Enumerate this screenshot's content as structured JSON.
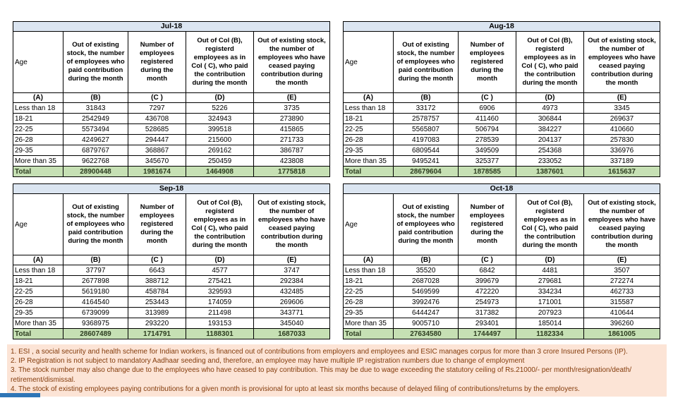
{
  "columns": {
    "age_label": "Age",
    "b": "Out of existing stock, the number of employees who paid contribution during the month",
    "c": "Number of employees registered during the month",
    "d": "Out of Col (B), registerd employees as in Col ( C), who paid the contribution during the month",
    "e": "Out of existing stock, the number of  employees who have ceased paying contribution during the month",
    "letters": [
      "(A)",
      "(B)",
      "(C )",
      "(D)",
      "(E)"
    ]
  },
  "months": [
    {
      "title": "Jul-18",
      "rows": [
        [
          "Less than 18",
          "31843",
          "7297",
          "5226",
          "3735"
        ],
        [
          "18-21",
          "2542949",
          "436708",
          "324943",
          "273890"
        ],
        [
          "22-25",
          "5573494",
          "528685",
          "399518",
          "415865"
        ],
        [
          "26-28",
          "4249627",
          "294447",
          "215600",
          "271733"
        ],
        [
          "29-35",
          "6879767",
          "368867",
          "269162",
          "386787"
        ],
        [
          "More than 35",
          "9622768",
          "345670",
          "250459",
          "423808"
        ]
      ],
      "total": [
        "Total",
        "28900448",
        "1981674",
        "1464908",
        "1775818"
      ]
    },
    {
      "title": "Aug-18",
      "rows": [
        [
          "Less than 18",
          "33172",
          "6906",
          "4973",
          "3345"
        ],
        [
          "18-21",
          "2578757",
          "411460",
          "306844",
          "269637"
        ],
        [
          "22-25",
          "5565807",
          "506794",
          "384227",
          "410660"
        ],
        [
          "26-28",
          "4197083",
          "278539",
          "204137",
          "257830"
        ],
        [
          "29-35",
          "6809544",
          "349509",
          "254368",
          "336976"
        ],
        [
          "More than 35",
          "9495241",
          "325377",
          "233052",
          "337189"
        ]
      ],
      "total": [
        "Total",
        "28679604",
        "1878585",
        "1387601",
        "1615637"
      ]
    },
    {
      "title": "Sep-18",
      "rows": [
        [
          "Less than 18",
          "37797",
          "6643",
          "4577",
          "3747"
        ],
        [
          "18-21",
          "2677898",
          "388712",
          "275421",
          "292384"
        ],
        [
          "22-25",
          "5619180",
          "458784",
          "329593",
          "432485"
        ],
        [
          "26-28",
          "4164540",
          "253443",
          "174059",
          "269606"
        ],
        [
          "29-35",
          "6739099",
          "313989",
          "211498",
          "343771"
        ],
        [
          "More than 35",
          "9368975",
          "293220",
          "193153",
          "345040"
        ]
      ],
      "total": [
        "Total",
        "28607489",
        "1714791",
        "1188301",
        "1687033"
      ]
    },
    {
      "title": "Oct-18",
      "rows": [
        [
          "Less than 18",
          "35520",
          "6842",
          "4481",
          "3507"
        ],
        [
          "18-21",
          "2687028",
          "399679",
          "279681",
          "272274"
        ],
        [
          "22-25",
          "5469599",
          "472220",
          "334234",
          "462733"
        ],
        [
          "26-28",
          "3992476",
          "254973",
          "171001",
          "315587"
        ],
        [
          "29-35",
          "6444247",
          "317382",
          "207923",
          "410644"
        ],
        [
          "More than 35",
          "9005710",
          "293401",
          "185014",
          "396260"
        ]
      ],
      "total": [
        "Total",
        "27634580",
        "1744497",
        "1182334",
        "1861005"
      ]
    }
  ],
  "footnotes": [
    "1. ESI , a social security and health scheme for Indian workers, is financed out of contributions from employers and employees and ESIC manages corpus for more than 3 crore Insured Persons (IP).",
    "2. IP Registration is not subject to mandatory Aadhaar seeding and, therefore, an employee may have multiple IP registration numbers due to change of employment",
    "3. The stock number may also change due to the employees who have ceased to pay contribution. This may  be due to wage exceeding the statutory ceiling of  Rs.21000/- per month/resignation/death/ retirement/dismissal.",
    "4. The stock of existing employees paying contributions for a given month is provisional for upto at least six months because of delayed filing of contributions/returns by the employers."
  ],
  "colors": {
    "title_bar_bg": "#dbe5f1",
    "title_text": "#17375e",
    "total_row_bg": "#c6e0b4",
    "footnote_bg": "#fce4d6",
    "footnote_text": "#843c0c",
    "bottom_bar": "#2e75b6",
    "border": "#000000"
  }
}
